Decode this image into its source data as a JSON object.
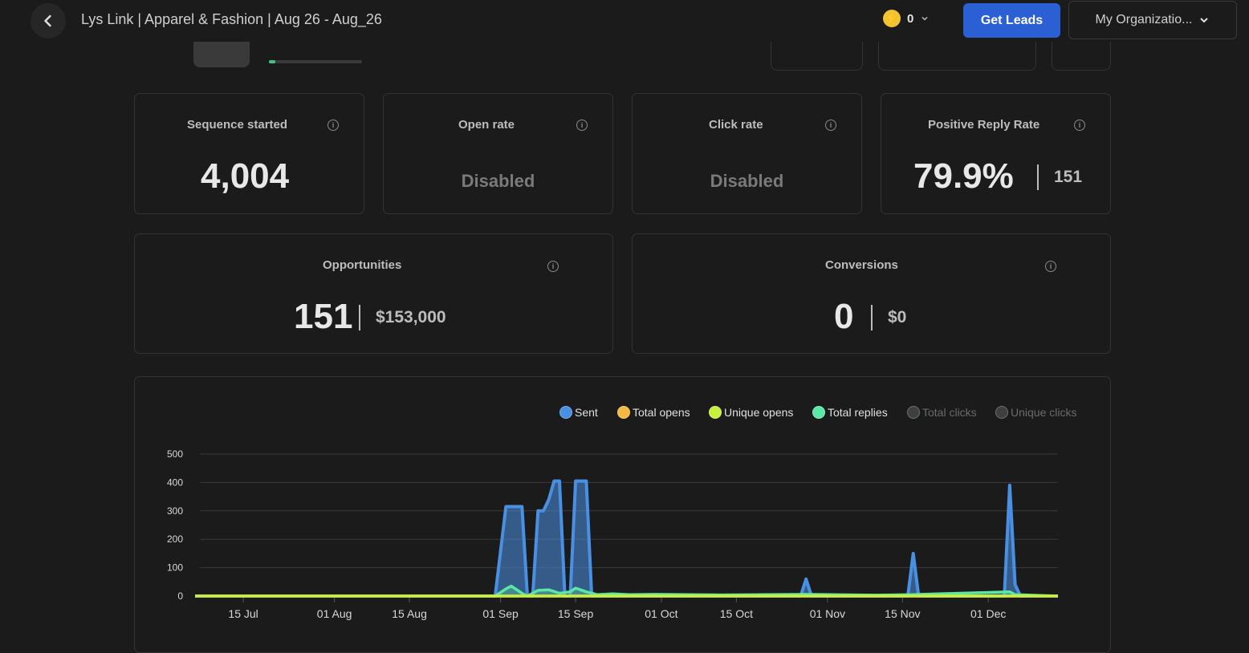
{
  "header": {
    "title": "Lys Link | Apparel & Fashion | Aug 26 - Aug_26",
    "credits": "0",
    "get_leads": "Get Leads",
    "org": "My Organizatio..."
  },
  "toolbar": {
    "status_progress": 0.07
  },
  "metrics": {
    "sequence_started": {
      "label": "Sequence started",
      "value": "4,004"
    },
    "open_rate": {
      "label": "Open rate",
      "value": "Disabled"
    },
    "click_rate": {
      "label": "Click rate",
      "value": "Disabled"
    },
    "positive_reply_rate": {
      "label": "Positive Reply Rate",
      "value": "79.9%",
      "count": "151"
    },
    "opportunities": {
      "label": "Opportunities",
      "value": "151",
      "amount": "$153,000"
    },
    "conversions": {
      "label": "Conversions",
      "value": "0",
      "amount": "$0"
    }
  },
  "colors": {
    "sent": "#4a90e2",
    "total_opens": "#f5b942",
    "unique_opens": "#c6ef3e",
    "total_replies": "#5ce6a8",
    "disabled": "#3d4040",
    "primary_button": "#2b5fd4"
  },
  "chart_data": {
    "type": "area",
    "legend": [
      {
        "name": "Sent",
        "color": "#4a90e2",
        "enabled": true
      },
      {
        "name": "Total opens",
        "color": "#f5b942",
        "enabled": true
      },
      {
        "name": "Unique opens",
        "color": "#c6ef3e",
        "enabled": true
      },
      {
        "name": "Total replies",
        "color": "#5ce6a8",
        "enabled": true
      },
      {
        "name": "Total clicks",
        "color": "#3d4040",
        "enabled": false
      },
      {
        "name": "Unique clicks",
        "color": "#3d4040",
        "enabled": false
      }
    ],
    "x_ticks": [
      "15 Jul",
      "01 Aug",
      "15 Aug",
      "01 Sep",
      "15 Sep",
      "01 Oct",
      "15 Oct",
      "01 Nov",
      "15 Nov",
      "01 Dec"
    ],
    "y_ticks": [
      0,
      100,
      200,
      300,
      400,
      500
    ],
    "ylim": [
      0,
      500
    ],
    "xlim": [
      "2025-07-06",
      "2025-12-14"
    ],
    "grid": true,
    "legend_position": "top-right",
    "series": [
      {
        "name": "Sent",
        "points": [
          [
            "2025-07-06",
            0
          ],
          [
            "2025-08-31",
            0
          ],
          [
            "2025-09-02",
            315
          ],
          [
            "2025-09-05",
            315
          ],
          [
            "2025-09-06",
            0
          ],
          [
            "2025-09-07",
            0
          ],
          [
            "2025-09-08",
            300
          ],
          [
            "2025-09-09",
            300
          ],
          [
            "2025-09-10",
            340
          ],
          [
            "2025-09-11",
            405
          ],
          [
            "2025-09-12",
            405
          ],
          [
            "2025-09-13",
            0
          ],
          [
            "2025-09-14",
            0
          ],
          [
            "2025-09-15",
            405
          ],
          [
            "2025-09-17",
            405
          ],
          [
            "2025-09-18",
            0
          ],
          [
            "2025-10-27",
            0
          ],
          [
            "2025-10-28",
            60
          ],
          [
            "2025-10-29",
            0
          ],
          [
            "2025-11-16",
            0
          ],
          [
            "2025-11-17",
            150
          ],
          [
            "2025-11-18",
            0
          ],
          [
            "2025-12-04",
            0
          ],
          [
            "2025-12-05",
            390
          ],
          [
            "2025-12-06",
            40
          ],
          [
            "2025-12-07",
            0
          ],
          [
            "2025-12-14",
            0
          ]
        ]
      },
      {
        "name": "Total replies",
        "points": [
          [
            "2025-07-06",
            0
          ],
          [
            "2025-08-31",
            0
          ],
          [
            "2025-09-02",
            25
          ],
          [
            "2025-09-03",
            35
          ],
          [
            "2025-09-05",
            10
          ],
          [
            "2025-09-06",
            0
          ],
          [
            "2025-09-08",
            20
          ],
          [
            "2025-09-10",
            22
          ],
          [
            "2025-09-12",
            10
          ],
          [
            "2025-09-14",
            15
          ],
          [
            "2025-09-15",
            28
          ],
          [
            "2025-09-17",
            15
          ],
          [
            "2025-09-19",
            5
          ],
          [
            "2025-09-22",
            8
          ],
          [
            "2025-09-25",
            5
          ],
          [
            "2025-09-30",
            6
          ],
          [
            "2025-10-06",
            5
          ],
          [
            "2025-10-12",
            4
          ],
          [
            "2025-10-28",
            6
          ],
          [
            "2025-11-10",
            3
          ],
          [
            "2025-11-17",
            5
          ],
          [
            "2025-12-05",
            15
          ],
          [
            "2025-12-06",
            5
          ],
          [
            "2025-12-14",
            0
          ]
        ]
      },
      {
        "name": "Total opens",
        "points": [
          [
            "2025-07-06",
            0
          ],
          [
            "2025-12-14",
            0
          ]
        ]
      },
      {
        "name": "Unique opens",
        "points": [
          [
            "2025-07-06",
            0
          ],
          [
            "2025-12-14",
            0
          ]
        ]
      }
    ]
  }
}
